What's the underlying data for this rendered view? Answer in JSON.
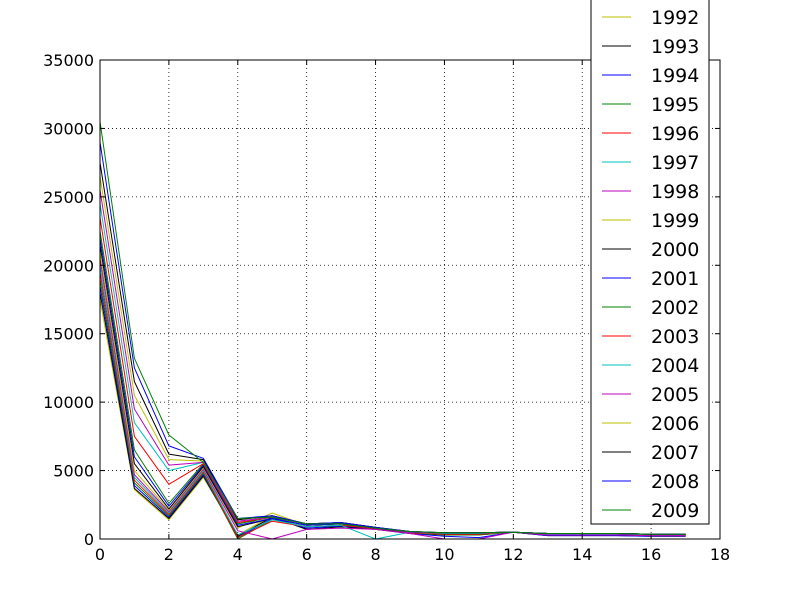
{
  "chart_data": {
    "type": "line",
    "title": "",
    "xlabel": "",
    "ylabel": "",
    "xlim": [
      0,
      18
    ],
    "ylim": [
      0,
      35000
    ],
    "xticks": [
      0,
      2,
      4,
      6,
      8,
      10,
      12,
      14,
      16,
      18
    ],
    "yticks": [
      0,
      5000,
      10000,
      15000,
      20000,
      25000,
      30000,
      35000
    ],
    "xtick_labels": [
      "0",
      "2",
      "4",
      "6",
      "8",
      "10",
      "12",
      "14",
      "16",
      "18"
    ],
    "ytick_labels": [
      "0",
      "5000",
      "10000",
      "15000",
      "20000",
      "25000",
      "30000",
      "35000"
    ],
    "grid": true,
    "legend_position": "top-right",
    "x": [
      0,
      1,
      2,
      3,
      4,
      5,
      6,
      7,
      8,
      9,
      10,
      11,
      12,
      13,
      14,
      15,
      16,
      17
    ],
    "series": [
      {
        "name": "1992",
        "color": "#bfbf00",
        "values": [
          17500,
          3600,
          1400,
          4500,
          300,
          1700,
          700,
          900,
          700,
          450,
          400,
          400,
          500,
          300,
          300,
          300,
          250,
          250
        ]
      },
      {
        "name": "1993",
        "color": "#000000",
        "values": [
          18000,
          3700,
          1500,
          4600,
          200,
          1600,
          700,
          900,
          700,
          400,
          300,
          300,
          500,
          250,
          250,
          250,
          200,
          200
        ]
      },
      {
        "name": "1994",
        "color": "#0000ff",
        "values": [
          18500,
          3900,
          1600,
          4700,
          100,
          1500,
          800,
          950,
          750,
          400,
          200,
          100,
          500,
          250,
          250,
          250,
          200,
          200
        ]
      },
      {
        "name": "1995",
        "color": "#008000",
        "values": [
          19000,
          4100,
          1700,
          4800,
          0,
          1400,
          900,
          1000,
          800,
          450,
          300,
          300,
          500,
          300,
          300,
          300,
          250,
          250
        ]
      },
      {
        "name": "1996",
        "color": "#ff0000",
        "values": [
          19500,
          4300,
          1800,
          4900,
          100,
          1300,
          900,
          1000,
          750,
          450,
          350,
          350,
          500,
          300,
          300,
          300,
          250,
          250
        ]
      },
      {
        "name": "1997",
        "color": "#00bfbf",
        "values": [
          20000,
          4500,
          1900,
          5000,
          300,
          1400,
          900,
          1000,
          0,
          500,
          400,
          400,
          500,
          350,
          350,
          350,
          300,
          300
        ]
      },
      {
        "name": "1998",
        "color": "#bf00bf",
        "values": [
          20500,
          4700,
          2000,
          5100,
          600,
          0,
          700,
          800,
          700,
          400,
          0,
          0,
          500,
          300,
          300,
          300,
          250,
          250
        ]
      },
      {
        "name": "1999",
        "color": "#bfbf00",
        "values": [
          21000,
          5000,
          2100,
          5200,
          800,
          1900,
          1000,
          1100,
          800,
          500,
          450,
          450,
          500,
          400,
          400,
          400,
          350,
          350
        ]
      },
      {
        "name": "2000",
        "color": "#000000",
        "values": [
          21500,
          5500,
          2200,
          5300,
          900,
          1500,
          1000,
          1100,
          800,
          500,
          450,
          450,
          500,
          400,
          400,
          400,
          350,
          350
        ]
      },
      {
        "name": "2001",
        "color": "#0000ff",
        "values": [
          22000,
          6000,
          2400,
          5400,
          1000,
          1500,
          1000,
          1100,
          800,
          500,
          450,
          450,
          500,
          400,
          400,
          400,
          350,
          350
        ]
      },
      {
        "name": "2002",
        "color": "#008000",
        "values": [
          22500,
          6500,
          2600,
          5500,
          1100,
          1600,
          1100,
          1200,
          850,
          500,
          450,
          450,
          500,
          400,
          400,
          400,
          350,
          350
        ]
      },
      {
        "name": "2003",
        "color": "#ff0000",
        "values": [
          23500,
          7500,
          4000,
          5500,
          1200,
          1600,
          1100,
          1200,
          850,
          500,
          450,
          450,
          500,
          400,
          400,
          400,
          350,
          350
        ]
      },
      {
        "name": "2004",
        "color": "#00bfbf",
        "values": [
          24500,
          8500,
          5000,
          5600,
          1300,
          1600,
          1100,
          1200,
          850,
          500,
          450,
          450,
          500,
          400,
          400,
          400,
          350,
          350
        ]
      },
      {
        "name": "2005",
        "color": "#bf00bf",
        "values": [
          25500,
          9500,
          5400,
          5600,
          1300,
          1600,
          1100,
          1200,
          850,
          500,
          450,
          450,
          500,
          400,
          400,
          400,
          350,
          350
        ]
      },
      {
        "name": "2006",
        "color": "#bfbf00",
        "values": [
          26500,
          10500,
          5800,
          5700,
          1400,
          1700,
          1100,
          1200,
          850,
          550,
          450,
          450,
          500,
          400,
          400,
          400,
          350,
          350
        ]
      },
      {
        "name": "2007",
        "color": "#000000",
        "values": [
          27500,
          11500,
          6200,
          5800,
          1400,
          1700,
          1100,
          1200,
          850,
          550,
          450,
          450,
          500,
          400,
          400,
          400,
          350,
          350
        ]
      },
      {
        "name": "2008",
        "color": "#0000ff",
        "values": [
          29000,
          12500,
          6800,
          5900,
          1500,
          1700,
          1100,
          1200,
          850,
          550,
          450,
          450,
          500,
          400,
          400,
          400,
          350,
          350
        ]
      },
      {
        "name": "2009",
        "color": "#008000",
        "values": [
          30500,
          13200,
          7600,
          5600,
          1500,
          1600,
          1100,
          1100,
          800,
          550,
          450,
          450,
          500,
          400,
          400,
          400,
          350,
          350
        ]
      }
    ]
  }
}
